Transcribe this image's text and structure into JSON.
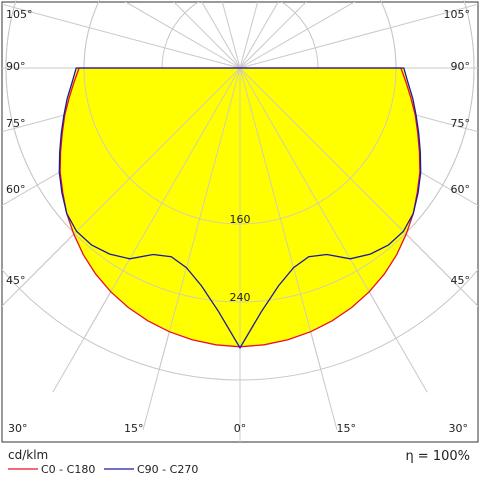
{
  "chart_data": {
    "type": "polar",
    "unit": "cd/klm",
    "efficiency": "η = 100%",
    "angle_labels": {
      "left": [
        "105°",
        "90°",
        "75°",
        "60°",
        "45°",
        "30°",
        "15°"
      ],
      "right": [
        "105°",
        "90°",
        "75°",
        "60°",
        "45°",
        "30°",
        "15°"
      ],
      "bottom_center": "0°"
    },
    "radial_ticks": [
      {
        "value": 160,
        "label": "160"
      },
      {
        "value": 240,
        "label": "240"
      }
    ],
    "rmax": 320,
    "grid": true,
    "fill_color": "#ffff00",
    "series": [
      {
        "name": "C0 - C180",
        "color": "#e8102a",
        "angles": [
          0,
          5,
          10,
          15,
          20,
          25,
          30,
          35,
          40,
          45,
          50,
          55,
          60,
          65,
          70,
          75,
          80,
          85,
          90
        ],
        "values": [
          286,
          285,
          283,
          280,
          276,
          271,
          265,
          258,
          250,
          241,
          232,
          222,
          213,
          203,
          194,
          186,
          178,
          171,
          165
        ]
      },
      {
        "name": "C90 - C270",
        "color": "#1a1aa0",
        "angles": [
          0,
          5,
          10,
          15,
          20,
          25,
          30,
          35,
          40,
          45,
          50,
          55,
          60,
          65,
          70,
          75,
          80,
          85,
          90
        ],
        "values": [
          287,
          251,
          227,
          212,
          206,
          211,
          226,
          233,
          237,
          237,
          232,
          223,
          214,
          204,
          195,
          187,
          180,
          173,
          168
        ]
      }
    ]
  }
}
